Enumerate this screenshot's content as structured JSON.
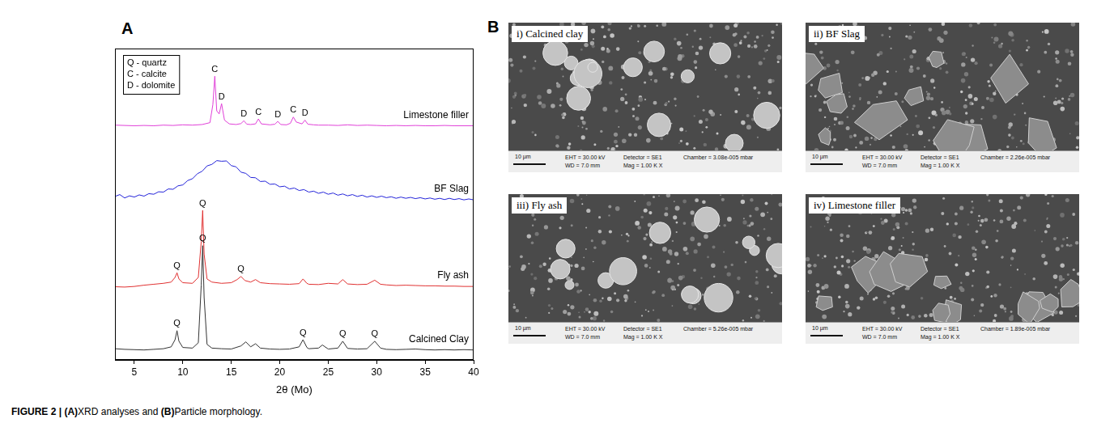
{
  "chart_data": {
    "type": "line",
    "panel_label": "A",
    "x_label": "2θ (Mo)",
    "xlim": [
      3,
      40
    ],
    "xticks": [
      5,
      10,
      15,
      20,
      25,
      30,
      35,
      40
    ],
    "ylim": [
      0,
      100
    ],
    "tick_labels": "x",
    "grid": false,
    "legend": false,
    "key": [
      "Q - quartz",
      "C - calcite",
      "D - dolomite"
    ],
    "series": [
      {
        "name": "Limestone filler",
        "color": "#e040d8",
        "x": [
          3,
          4,
          5,
          6,
          7,
          8,
          9,
          10,
          11,
          12,
          12.8,
          13.1,
          13.3,
          13.5,
          13.75,
          14.0,
          14.3,
          14.8,
          15.5,
          16,
          16.3,
          16.6,
          17,
          17.5,
          17.8,
          18.1,
          19,
          19.5,
          19.8,
          20.1,
          20.7,
          21.1,
          21.4,
          21.7,
          22.3,
          22.6,
          22.9,
          23.5,
          24,
          25,
          26,
          27,
          28,
          29,
          30,
          31,
          32,
          33,
          34,
          35,
          36,
          37,
          38,
          39,
          40
        ],
        "values": [
          75.4,
          75.3,
          75.2,
          75.3,
          75.2,
          75.4,
          75.3,
          75.5,
          75.4,
          75.6,
          76.2,
          82,
          91.1,
          80,
          79,
          82.3,
          77,
          75.8,
          75.6,
          75.9,
          76.8,
          75.7,
          75.6,
          75.8,
          77.4,
          75.8,
          75.5,
          75.7,
          76.6,
          75.6,
          75.5,
          76,
          78,
          76.4,
          75.8,
          77,
          75.7,
          75.5,
          75.4,
          75.4,
          75.3,
          75.5,
          75.3,
          75.4,
          75.3,
          75.2,
          75.3,
          75.2,
          75.3,
          75.2,
          75.2,
          75.3,
          75.2,
          75.2,
          75.2
        ],
        "peaks": [
          {
            "x": 13.3,
            "label": "C"
          },
          {
            "x": 14.0,
            "label": "D"
          },
          {
            "x": 16.3,
            "label": "D"
          },
          {
            "x": 17.8,
            "label": "C"
          },
          {
            "x": 19.8,
            "label": "D"
          },
          {
            "x": 21.4,
            "label": "C"
          },
          {
            "x": 22.6,
            "label": "D"
          }
        ]
      },
      {
        "name": "BF Slag",
        "color": "#2323d9",
        "x": [
          3,
          3.5,
          4,
          4.5,
          5,
          5.5,
          6,
          6.5,
          7,
          7.5,
          8,
          8.5,
          9,
          9.5,
          10,
          10.5,
          11,
          11.5,
          12,
          12.5,
          13,
          13.5,
          14,
          14.5,
          15,
          15.5,
          16,
          16.5,
          17,
          17.5,
          18,
          18.5,
          19,
          19.5,
          20,
          20.5,
          21,
          21.5,
          22,
          22.5,
          23,
          23.5,
          24,
          24.5,
          25,
          25.5,
          26,
          26.5,
          27,
          27.5,
          28,
          28.5,
          29,
          29.5,
          30,
          30.5,
          31,
          31.5,
          32,
          32.5,
          33,
          33.5,
          34,
          34.5,
          35,
          35.5,
          36,
          36.5,
          37,
          37.5,
          38,
          38.5,
          39,
          39.5,
          40
        ],
        "values": [
          52.5,
          53.1,
          52.0,
          52.7,
          52.3,
          53.0,
          52.6,
          53.4,
          53.2,
          54.0,
          53.9,
          54.9,
          54.8,
          55.9,
          56.2,
          57.6,
          58.2,
          59.8,
          60.6,
          62.3,
          62.8,
          64.0,
          63.8,
          63.9,
          62.4,
          62.0,
          60.3,
          59.9,
          58.6,
          58.5,
          57.3,
          57.4,
          56.4,
          56.5,
          55.6,
          55.8,
          54.9,
          55.2,
          54.4,
          54.7,
          53.9,
          54.2,
          53.5,
          53.9,
          53.2,
          53.6,
          52.9,
          53.3,
          52.7,
          53.1,
          52.5,
          52.9,
          52.3,
          52.7,
          52.2,
          52.6,
          52.1,
          52.4,
          51.9,
          52.3,
          51.9,
          52.2,
          51.8,
          52.1,
          51.7,
          52.0,
          51.6,
          51.9,
          51.5,
          51.9,
          51.5,
          51.8,
          51.4,
          51.7,
          51.4
        ],
        "peaks": []
      },
      {
        "name": "Fly ash",
        "color": "#e03030",
        "x": [
          3,
          4,
          5,
          6,
          7,
          8,
          8.8,
          9.2,
          9.4,
          9.6,
          10,
          11,
          11.6,
          11.9,
          12.05,
          12.2,
          12.5,
          13,
          14,
          15,
          15.6,
          16,
          16.4,
          17,
          17.5,
          18,
          19,
          20,
          21,
          22,
          22.4,
          22.8,
          23,
          24,
          25,
          26,
          26.5,
          27,
          28,
          29,
          29.8,
          30.4,
          31,
          32,
          33,
          34,
          35,
          36,
          37,
          38,
          39,
          40
        ],
        "values": [
          23.5,
          23.4,
          23.6,
          24,
          24.3,
          24.6,
          25,
          26.5,
          28,
          26,
          24.8,
          24.6,
          26.5,
          38,
          48,
          34,
          26,
          25,
          24.6,
          24.8,
          25.8,
          26.8,
          25.5,
          25,
          25.8,
          24.8,
          24.5,
          24.4,
          24.3,
          24.5,
          26,
          24.6,
          24.3,
          24.2,
          24.6,
          24.4,
          25.8,
          24.4,
          24.2,
          24.3,
          25.6,
          24.3,
          24.1,
          23.9,
          24,
          23.9,
          23.8,
          23.8,
          23.7,
          23.7,
          23.6,
          23.6
        ],
        "peaks": [
          {
            "x": 9.4,
            "label": "Q"
          },
          {
            "x": 12.05,
            "label": "Q"
          },
          {
            "x": 16,
            "label": "Q"
          }
        ]
      },
      {
        "name": "Calcined Clay",
        "color": "#333333",
        "x": [
          3,
          4,
          5,
          6,
          7,
          8,
          8.8,
          9.2,
          9.4,
          9.6,
          10,
          11,
          11.6,
          11.9,
          12.05,
          12.2,
          12.5,
          13,
          14,
          15,
          16,
          16.5,
          17,
          17.5,
          18,
          19,
          20,
          21,
          22,
          22.4,
          22.8,
          23,
          24,
          24.4,
          25,
          26,
          26.5,
          27,
          28,
          29,
          29.8,
          30.4,
          31,
          32,
          33,
          34,
          35,
          36,
          37,
          38,
          39,
          40
        ],
        "values": [
          3.6,
          3.4,
          3.3,
          3.2,
          3.4,
          3.6,
          4.2,
          6.5,
          9.4,
          6,
          4,
          3.8,
          5.5,
          24,
          36.7,
          20,
          5,
          3.8,
          3.6,
          3.5,
          4.5,
          5.8,
          4.2,
          5.2,
          3.8,
          3.5,
          3.4,
          3.5,
          4.2,
          6.5,
          4,
          3.6,
          3.8,
          4.8,
          3.5,
          3.8,
          6,
          3.7,
          3.5,
          3.6,
          6,
          3.8,
          3.4,
          3.3,
          3.4,
          3.5,
          3.3,
          3.2,
          3.3,
          3.2,
          3.3,
          3.2
        ],
        "peaks": [
          {
            "x": 9.4,
            "label": "Q"
          },
          {
            "x": 12.05,
            "label": "Q"
          },
          {
            "x": 22.4,
            "label": "Q"
          },
          {
            "x": 26.5,
            "label": "Q"
          },
          {
            "x": 29.8,
            "label": "Q"
          }
        ]
      }
    ]
  },
  "panel_b": {
    "panel_label": "B",
    "images": [
      {
        "title": "i) Calcined clay",
        "scale_bar": "10 µm",
        "info": [
          "EHT = 30.00 kV",
          "WD = 7.0 mm",
          "Detector = SE1",
          "Mag = 1.00 K X",
          "Chamber = 3.08e-005 mbar"
        ]
      },
      {
        "title": "ii) BF Slag",
        "scale_bar": "10 µm",
        "info": [
          "EHT = 30.00 kV",
          "WD = 7.0 mm",
          "Detector = SE1",
          "Mag = 1.00 K X",
          "Chamber = 2.26e-005 mbar"
        ]
      },
      {
        "title": "iii) Fly ash",
        "scale_bar": "10 µm",
        "info": [
          "EHT = 30.00 kV",
          "WD = 7.0 mm",
          "Detector = SE1",
          "Mag = 1.00 K X",
          "Chamber = 5.26e-005 mbar"
        ]
      },
      {
        "title": "iv) Limestone filler",
        "scale_bar": "10 µm",
        "info": [
          "EHT = 30.00 kV",
          "WD = 7.0 mm",
          "Detector = SE1",
          "Mag = 1.00 K X",
          "Chamber = 1.89e-005 mbar"
        ]
      }
    ]
  },
  "caption": "FIGURE 2 | (A)XRD analyses and (B)Particle morphology."
}
